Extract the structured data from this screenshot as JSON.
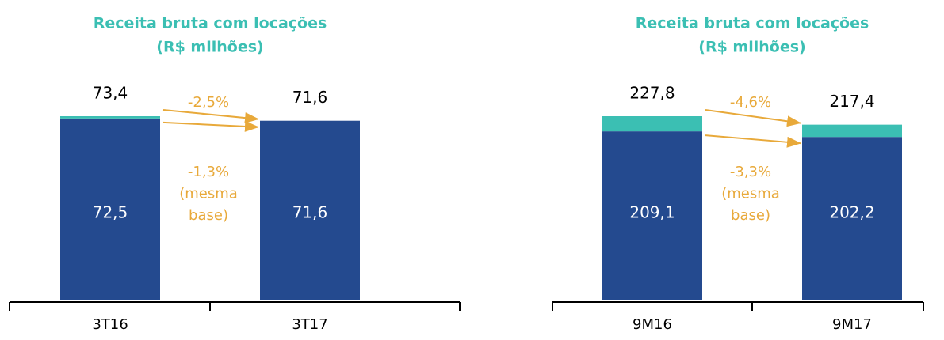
{
  "chart_data": [
    {
      "type": "stacked_bar",
      "title": "Receita bruta com locações",
      "subtitle": "(R$ milhões)",
      "categories": [
        "3T16",
        "3T17"
      ],
      "series": [
        {
          "color": "#244a8f",
          "values": [
            72.5,
            71.6
          ],
          "value_labels": [
            "72,5",
            "71,6"
          ]
        },
        {
          "color": "#3bbfb3",
          "values": [
            0.9,
            0
          ]
        }
      ],
      "totals": [
        73.4,
        71.6
      ],
      "total_labels": [
        "73,4",
        "71,6"
      ],
      "annotations": [
        {
          "lines": [
            "-2,5%"
          ]
        },
        {
          "lines": [
            "-1,3%",
            "(mesma",
            "base)"
          ]
        }
      ]
    },
    {
      "type": "stacked_bar",
      "title": "Receita bruta com locações",
      "subtitle": "(R$ milhões)",
      "categories": [
        "9M16",
        "9M17"
      ],
      "series": [
        {
          "color": "#244a8f",
          "values": [
            209.1,
            202.2
          ],
          "value_labels": [
            "209,1",
            "202,2"
          ]
        },
        {
          "color": "#3bbfb3",
          "values": [
            18.7,
            15.2
          ]
        }
      ],
      "totals": [
        227.8,
        217.4
      ],
      "total_labels": [
        "227,8",
        "217,4"
      ],
      "annotations": [
        {
          "lines": [
            "-4,6%"
          ]
        },
        {
          "lines": [
            "-3,3%",
            "(mesma",
            "base)"
          ]
        }
      ]
    }
  ]
}
